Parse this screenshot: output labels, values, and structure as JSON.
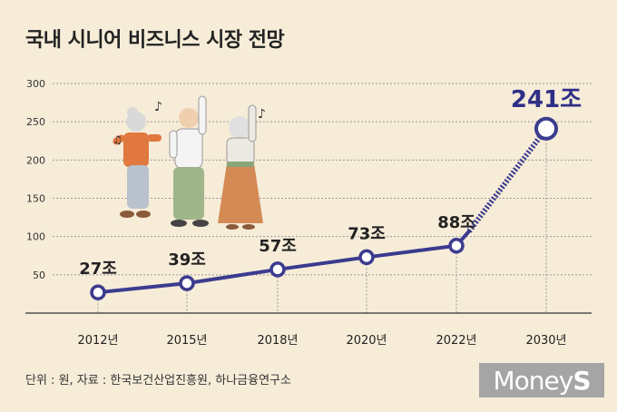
{
  "title": "국내 시니어 비즈니스 시장 전망",
  "source": "단위 : 원, 자료 : 한국보건산업진흥원, 하나금융연구소",
  "logo": "MoneyS",
  "colors": {
    "background": "#f6ecd8",
    "line": "#3b3b8f",
    "accent_label": "#2e2f86"
  },
  "chart_data": {
    "type": "line",
    "categories": [
      "2012년",
      "2015년",
      "2018년",
      "2020년",
      "2022년",
      "2030년"
    ],
    "values": [
      27,
      39,
      57,
      73,
      88,
      241
    ],
    "data_labels": [
      "27조",
      "39조",
      "57조",
      "73조",
      "88조",
      "241조"
    ],
    "yticks": [
      50,
      100,
      150,
      200,
      250,
      300
    ],
    "ylim": [
      0,
      300
    ],
    "grid": true,
    "projection_segment": "2022년-2030년 dotted"
  }
}
